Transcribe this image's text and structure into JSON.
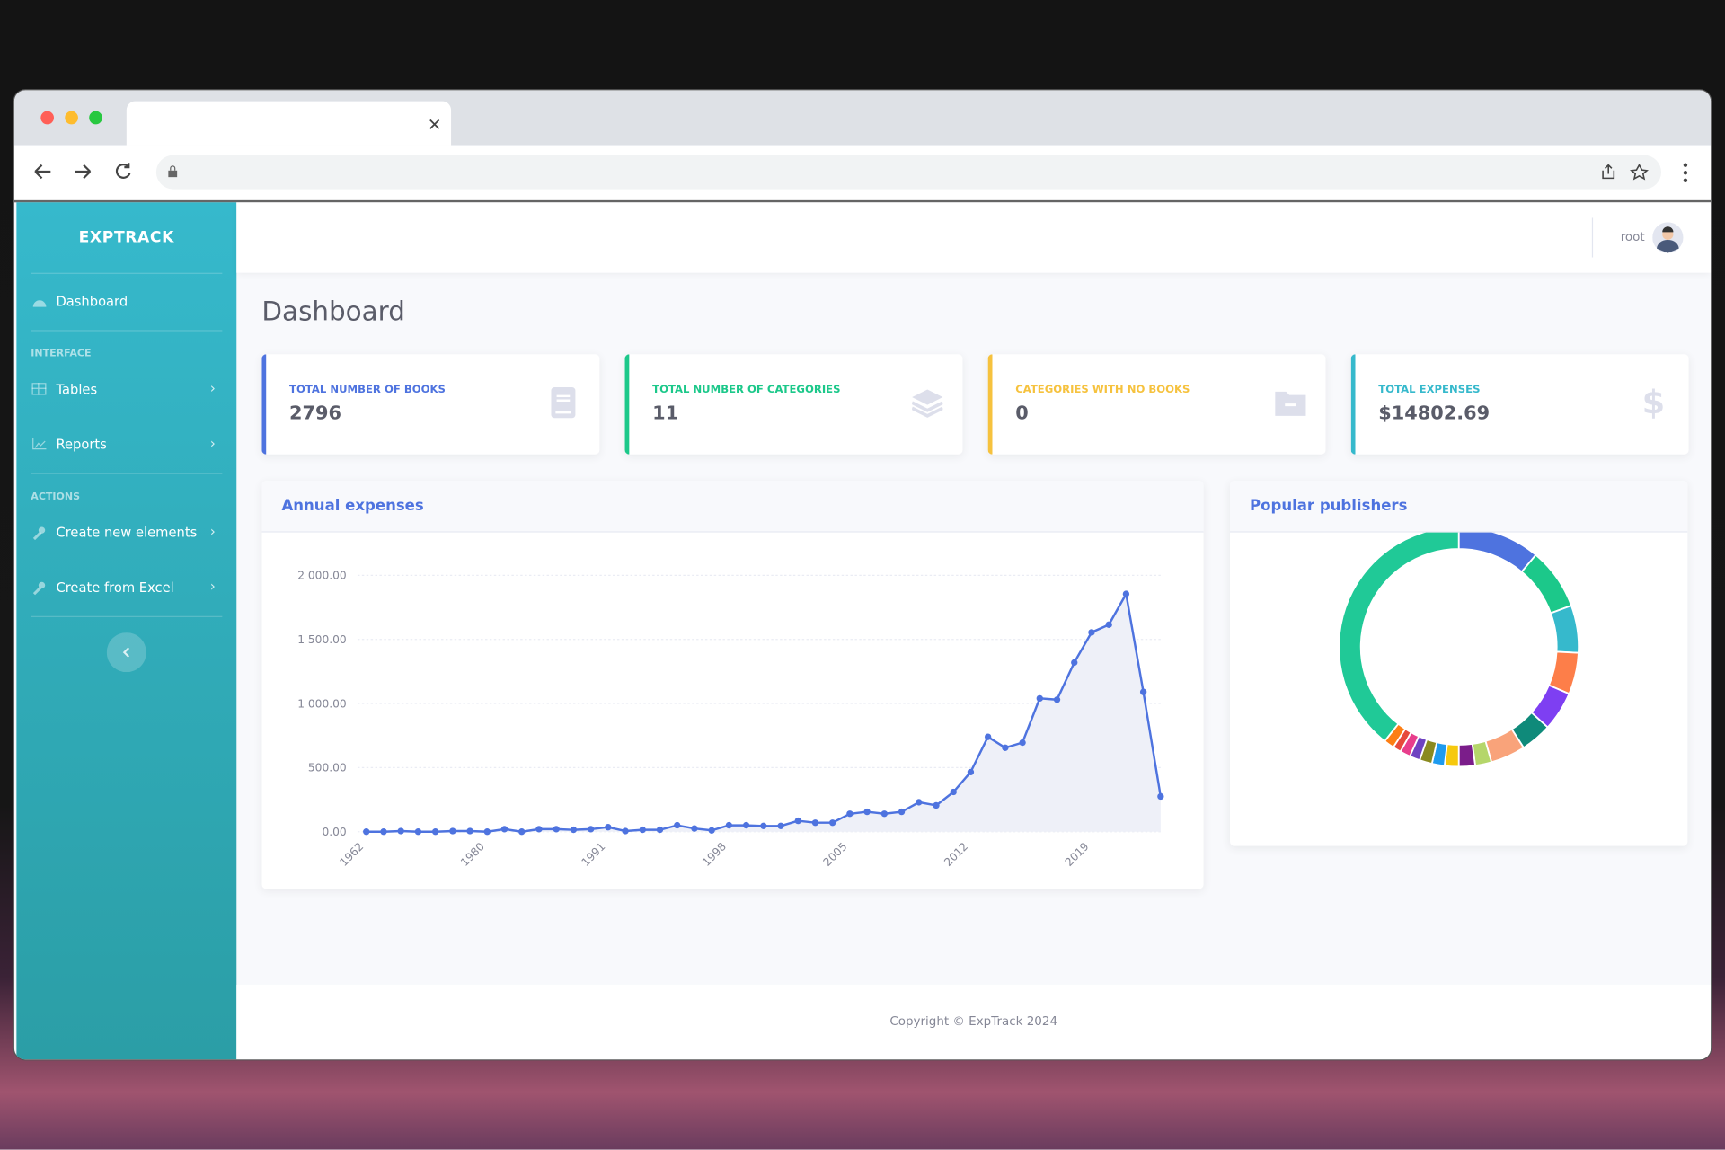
{
  "sidebar": {
    "brand": "EXPTRACK",
    "dashboard": "Dashboard",
    "sections": [
      {
        "heading": "INTERFACE",
        "items": [
          "Tables",
          "Reports"
        ]
      },
      {
        "heading": "ACTIONS",
        "items": [
          "Create new elements",
          "Create from Excel"
        ]
      }
    ]
  },
  "topbar": {
    "user": "root"
  },
  "page_title": "Dashboard",
  "cards": [
    {
      "label": "TOTAL NUMBER OF BOOKS",
      "value": 2796,
      "color": "#4e73df"
    },
    {
      "label": "TOTAL NUMBER OF CATEGORIES",
      "value": 11,
      "color": "#1cc88a"
    },
    {
      "label": "CATEGORIES WITH NO BOOKS",
      "value": 0,
      "color": "#f6c23e"
    },
    {
      "label": "TOTAL EXPENSES",
      "value": "$14802.69",
      "color": "#36b9cc"
    }
  ],
  "chart_data": [
    {
      "type": "line",
      "title": "Annual expenses",
      "categories": [
        "1962",
        null,
        null,
        null,
        null,
        null,
        null,
        "1980",
        null,
        null,
        null,
        null,
        null,
        null,
        "1991",
        null,
        null,
        null,
        null,
        null,
        null,
        "1998",
        null,
        null,
        null,
        null,
        null,
        null,
        "2005",
        null,
        null,
        null,
        null,
        null,
        null,
        "2012",
        null,
        null,
        null,
        null,
        null,
        null,
        "2019",
        null,
        null,
        null,
        null
      ],
      "values": [
        0,
        0,
        5,
        0,
        0,
        5,
        5,
        0,
        20,
        0,
        20,
        20,
        15,
        20,
        35,
        5,
        15,
        15,
        50,
        25,
        10,
        50,
        50,
        45,
        45,
        85,
        70,
        70,
        140,
        155,
        140,
        155,
        230,
        205,
        310,
        465,
        740,
        655,
        695,
        1040,
        1030,
        1320,
        1555,
        1615,
        1855,
        1090,
        275
      ],
      "color": "#4e73df",
      "area_color": "#eef0f8",
      "ylim": [
        0,
        2000
      ],
      "yticks": [
        {
          "value": 0,
          "label": "0.00"
        },
        {
          "value": 500,
          "label": "500.00"
        },
        {
          "value": 1000,
          "label": "1 000.00"
        },
        {
          "value": 1500,
          "label": "1 500.00"
        },
        {
          "value": 2000,
          "label": "2 000.00"
        }
      ],
      "grid": true
    },
    {
      "type": "pie",
      "title": "Popular publishers",
      "donut": true,
      "values": [
        11.1,
        8.3,
        6.4,
        5.6,
        5.3,
        4.2,
        4.7,
        2.2,
        2.2,
        1.9,
        1.7,
        1.7,
        1.4,
        1.4,
        1.1,
        1.4,
        39.4
      ],
      "colors": [
        "#4e73df",
        "#1cc88a",
        "#36b9cc",
        "#fd7e49",
        "#7e3ff2",
        "#0f8a7a",
        "#f9a37a",
        "#b5d66a",
        "#7b1d8a",
        "#f6c90e",
        "#1e9bef",
        "#8a8a20",
        "#6f42c1",
        "#e83e8c",
        "#e74a3b",
        "#fd7e14",
        "#20c997"
      ]
    }
  ],
  "footer": "Copyright © ExpTrack 2024"
}
